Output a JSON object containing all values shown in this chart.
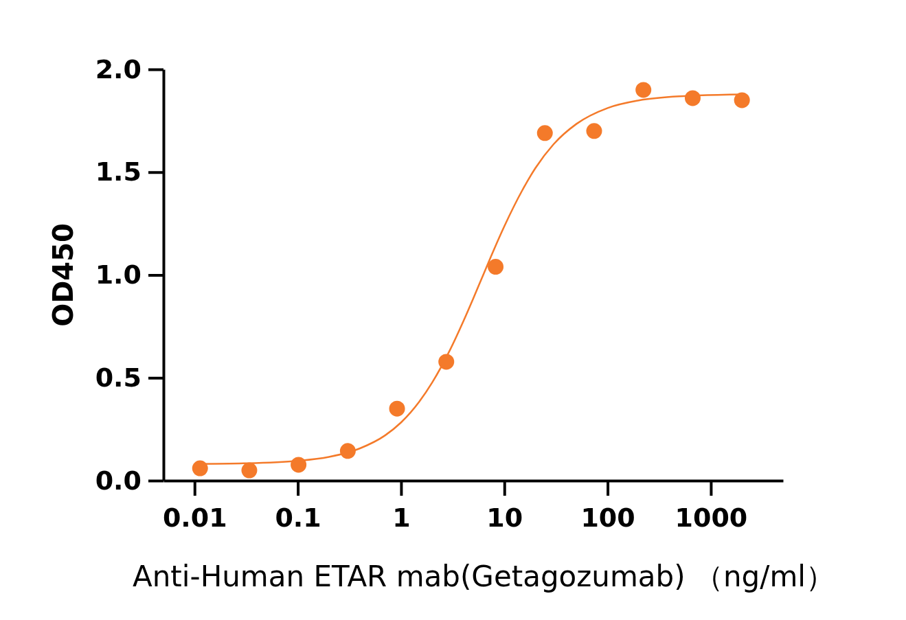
{
  "chart_data": {
    "type": "scatter",
    "xlabel": "Anti-Human ETAR mab(Getagozumab) （ng/ml）",
    "ylabel": "OD450",
    "log": "x",
    "grid": false,
    "xlim": [
      0.005,
      5000
    ],
    "xticks": [
      0.01,
      0.1,
      1,
      10,
      100,
      1000
    ],
    "ylim": [
      0,
      2
    ],
    "yticks": [
      {
        "value": 0,
        "label": "0.0"
      },
      {
        "value": 0.5,
        "label": "0.5"
      },
      {
        "value": 1,
        "label": "1.0"
      },
      {
        "value": 1.5,
        "label": "1.5"
      },
      {
        "value": 2,
        "label": "2.0"
      }
    ],
    "series": [
      {
        "marker": "circle",
        "color": "#f47a2a",
        "x": [
          0.0113,
          0.0339,
          0.1016,
          0.305,
          0.914,
          2.74,
          8.23,
          24.69,
          74.07,
          222.2,
          666.7,
          2000
        ],
        "values": [
          0.06,
          0.05,
          0.077,
          0.144,
          0.35,
          0.578,
          1.04,
          1.69,
          1.7,
          1.9,
          1.86,
          1.85
        ]
      },
      {
        "type": "line",
        "marker": "none",
        "line_style": "solid",
        "color": "#f47a2a",
        "x": [
          0.01,
          0.03,
          0.1,
          0.2,
          0.4,
          0.7,
          1,
          1.5,
          2,
          3,
          4,
          5,
          6,
          8,
          10,
          15,
          20,
          30,
          50,
          100,
          200,
          500,
          2000
        ],
        "values": [
          0.081,
          0.084,
          0.096,
          0.115,
          0.157,
          0.22,
          0.283,
          0.384,
          0.477,
          0.639,
          0.774,
          0.886,
          0.98,
          1.128,
          1.237,
          1.414,
          1.52,
          1.636,
          1.735,
          1.812,
          1.849,
          1.869,
          1.878
        ]
      }
    ]
  }
}
